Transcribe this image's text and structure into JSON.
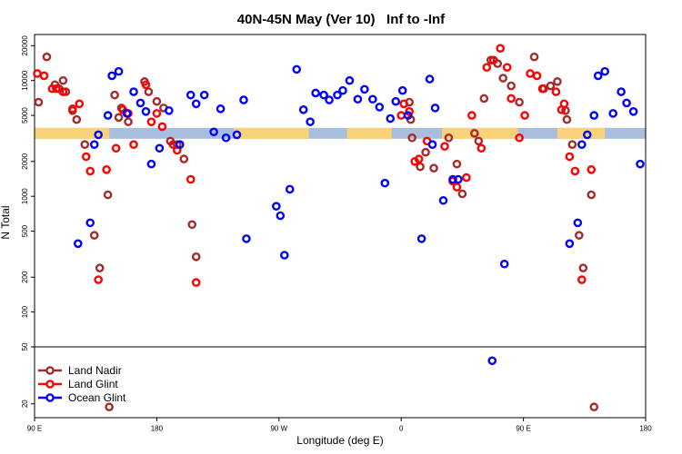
{
  "chart_data": {
    "type": "scatter",
    "title": "40N-45N May (Ver 10)   Inf to -Inf",
    "xlabel": "Longitude (deg E)",
    "ylabel": "N Total",
    "x_ticks": [
      {
        "value": 90,
        "label": "90 E"
      },
      {
        "value": 180,
        "label": "180"
      },
      {
        "value": 270,
        "label": "90 W"
      },
      {
        "value": 360,
        "label": "0"
      },
      {
        "value": 450,
        "label": "90 E"
      },
      {
        "value": 540,
        "label": "180"
      }
    ],
    "xlim": [
      90,
      540
    ],
    "y_scale": "log",
    "upper_panel": {
      "ylim": [
        50,
        25000
      ],
      "y_ticks": [
        {
          "value": 50,
          "label": "50"
        },
        {
          "value": 100,
          "label": "100"
        },
        {
          "value": 200,
          "label": "200"
        },
        {
          "value": 500,
          "label": "500"
        },
        {
          "value": 1000,
          "label": "1000"
        },
        {
          "value": 2000,
          "label": "2000"
        },
        {
          "value": 5000,
          "label": "5000"
        },
        {
          "value": 10000,
          "label": "10000"
        },
        {
          "value": 20000,
          "label": "20000"
        }
      ]
    },
    "lower_panel": {
      "ylim": [
        16,
        50
      ],
      "y_ticks": [
        {
          "value": 20,
          "label": "20"
        }
      ]
    },
    "land_band": {
      "y": 3500,
      "land_color": "#F9D27A",
      "ocean_color": "#A7BEDE",
      "land_segments": [
        [
          90,
          145
        ],
        [
          237,
          292
        ],
        [
          320,
          353
        ],
        [
          390,
          446
        ],
        [
          475,
          510
        ]
      ]
    },
    "series": [
      {
        "name": "Land Nadir",
        "color": "#A52A2A",
        "points": [
          [
            93,
            6500
          ],
          [
            99,
            16000
          ],
          [
            105,
            9200
          ],
          [
            108,
            8500
          ],
          [
            111,
            10000
          ],
          [
            113,
            8000
          ],
          [
            118,
            5500
          ],
          [
            121,
            4600
          ],
          [
            127,
            2800
          ],
          [
            134,
            460
          ],
          [
            138,
            240
          ],
          [
            144,
            1030
          ],
          [
            145,
            19
          ],
          [
            149,
            7500
          ],
          [
            152,
            4800
          ],
          [
            154,
            5800
          ],
          [
            159,
            4400
          ],
          [
            171,
            9800
          ],
          [
            174,
            8000
          ],
          [
            180,
            6600
          ],
          [
            185,
            5800
          ],
          [
            190,
            3000
          ],
          [
            195,
            2800
          ],
          [
            200,
            2100
          ],
          [
            206,
            570
          ],
          [
            209,
            300
          ],
          [
            366,
            6500
          ],
          [
            367,
            4600
          ],
          [
            368,
            3200
          ],
          [
            374,
            1800
          ],
          [
            378,
            2400
          ],
          [
            384,
            1750
          ],
          [
            395,
            3200
          ],
          [
            401,
            1900
          ],
          [
            405,
            1050
          ],
          [
            414,
            3500
          ],
          [
            417,
            3000
          ],
          [
            421,
            7000
          ],
          [
            426,
            15000
          ],
          [
            431,
            14000
          ],
          [
            435,
            10500
          ],
          [
            441,
            9000
          ],
          [
            447,
            6500
          ],
          [
            458,
            16000
          ],
          [
            465,
            8500
          ],
          [
            470,
            9000
          ],
          [
            475,
            9800
          ],
          [
            481,
            5500
          ],
          [
            482,
            4600
          ],
          [
            486,
            2800
          ],
          [
            491,
            460
          ],
          [
            494,
            240
          ],
          [
            500,
            1030
          ],
          [
            502,
            19
          ]
        ]
      },
      {
        "name": "Land Glint",
        "color": "#FF0000",
        "points": [
          [
            92,
            11500
          ],
          [
            97,
            11000
          ],
          [
            103,
            8500
          ],
          [
            106,
            8500
          ],
          [
            111,
            8000
          ],
          [
            118,
            5700
          ],
          [
            123,
            6300
          ],
          [
            128,
            2200
          ],
          [
            131,
            1650
          ],
          [
            137,
            190
          ],
          [
            143,
            1700
          ],
          [
            150,
            2600
          ],
          [
            155,
            5600
          ],
          [
            159,
            5200
          ],
          [
            163,
            2800
          ],
          [
            172,
            9200
          ],
          [
            176,
            4400
          ],
          [
            180,
            5200
          ],
          [
            184,
            4000
          ],
          [
            192,
            2800
          ],
          [
            195,
            2500
          ],
          [
            205,
            1400
          ],
          [
            209,
            180
          ],
          [
            360,
            5000
          ],
          [
            362,
            6300
          ],
          [
            366,
            5400
          ],
          [
            370,
            2000
          ],
          [
            373,
            2100
          ],
          [
            379,
            3000
          ],
          [
            392,
            2700
          ],
          [
            398,
            1350
          ],
          [
            401,
            1200
          ],
          [
            408,
            1450
          ],
          [
            412,
            5000
          ],
          [
            419,
            2600
          ],
          [
            423,
            13000
          ],
          [
            428,
            15000
          ],
          [
            433,
            19000
          ],
          [
            438,
            13000
          ],
          [
            441,
            7000
          ],
          [
            447,
            3200
          ],
          [
            451,
            5000
          ],
          [
            455,
            11500
          ],
          [
            460,
            11000
          ],
          [
            464,
            8500
          ],
          [
            474,
            8000
          ],
          [
            478,
            5600
          ],
          [
            480,
            6300
          ],
          [
            484,
            2200
          ],
          [
            488,
            1650
          ],
          [
            493,
            190
          ],
          [
            500,
            1700
          ]
        ]
      },
      {
        "name": "Ocean Glint",
        "color": "#0000FF",
        "points": [
          [
            122,
            390
          ],
          [
            131,
            590
          ],
          [
            134,
            2800
          ],
          [
            137,
            3400
          ],
          [
            144,
            5000
          ],
          [
            147,
            11000
          ],
          [
            152,
            12000
          ],
          [
            158,
            5200
          ],
          [
            163,
            8000
          ],
          [
            168,
            6400
          ],
          [
            172,
            5400
          ],
          [
            176,
            1900
          ],
          [
            182,
            2600
          ],
          [
            189,
            5500
          ],
          [
            197,
            2800
          ],
          [
            205,
            7500
          ],
          [
            209,
            6300
          ],
          [
            215,
            7500
          ],
          [
            222,
            3600
          ],
          [
            227,
            5700
          ],
          [
            231,
            3200
          ],
          [
            239,
            3400
          ],
          [
            244,
            6800
          ],
          [
            246,
            430
          ],
          [
            268,
            820
          ],
          [
            271,
            680
          ],
          [
            274,
            310
          ],
          [
            278,
            1150
          ],
          [
            283,
            12500
          ],
          [
            288,
            5600
          ],
          [
            293,
            4400
          ],
          [
            297,
            7800
          ],
          [
            303,
            7500
          ],
          [
            307,
            6800
          ],
          [
            313,
            7500
          ],
          [
            317,
            8200
          ],
          [
            322,
            10000
          ],
          [
            328,
            6900
          ],
          [
            333,
            8400
          ],
          [
            339,
            6900
          ],
          [
            344,
            5900
          ],
          [
            348,
            1300
          ],
          [
            352,
            4700
          ],
          [
            356,
            6600
          ],
          [
            361,
            8200
          ],
          [
            365,
            5000
          ],
          [
            375,
            430
          ],
          [
            381,
            10300
          ],
          [
            383,
            2800
          ],
          [
            385,
            5800
          ],
          [
            391,
            920
          ],
          [
            398,
            1400
          ],
          [
            402,
            1400
          ],
          [
            427,
            40
          ],
          [
            436,
            260
          ],
          [
            484,
            390
          ],
          [
            490,
            590
          ],
          [
            493,
            2800
          ],
          [
            497,
            3400
          ],
          [
            502,
            5000
          ],
          [
            505,
            11000
          ],
          [
            510,
            12000
          ],
          [
            516,
            5200
          ],
          [
            522,
            8000
          ],
          [
            526,
            6400
          ],
          [
            531,
            5400
          ],
          [
            536,
            1900
          ]
        ]
      }
    ],
    "legend": {
      "position": "bottom-left",
      "entries": [
        "Land Nadir",
        "Land Glint",
        "Ocean Glint"
      ]
    },
    "grid": false
  }
}
